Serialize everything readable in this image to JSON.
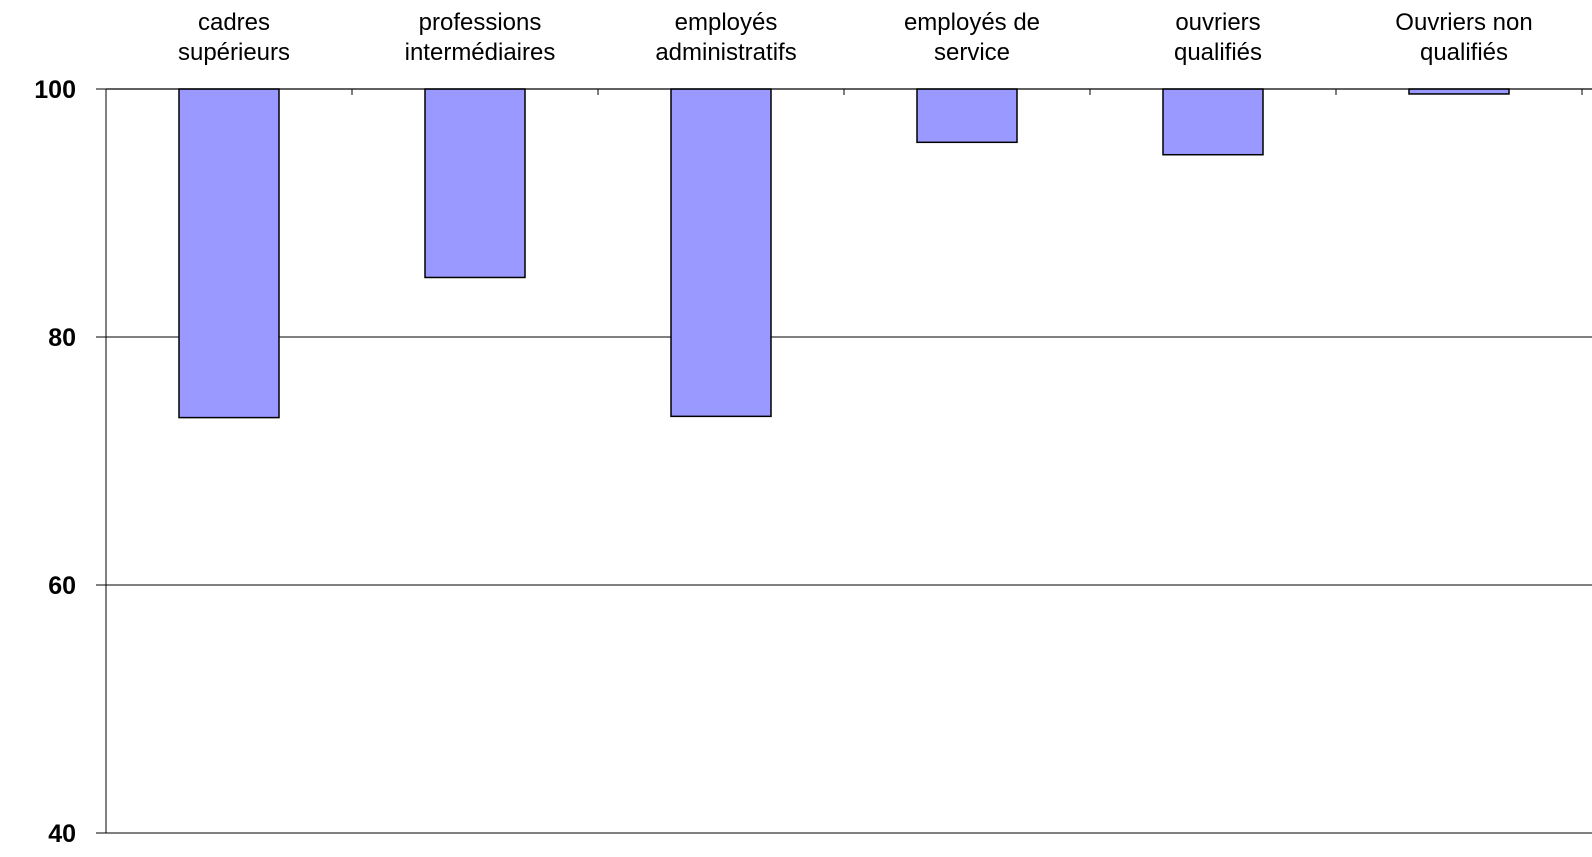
{
  "chart_data": {
    "type": "bar",
    "orientation": "vertical",
    "baseline": 100,
    "title": "",
    "xlabel": "",
    "ylabel": "",
    "ylim": [
      40,
      100
    ],
    "yticks": [
      40,
      60,
      80,
      100
    ],
    "x_axis_position": "top",
    "grid": true,
    "legend": "none",
    "categories": [
      "cadres\nsupérieurs",
      "professions\nintermédiaires",
      "employés\nadministratifs",
      "employés de\nservice",
      "ouvriers\nqualifiés",
      "Ouvriers non\nqualifiés"
    ],
    "values": [
      73.5,
      84.8,
      73.6,
      95.7,
      94.7,
      99.6
    ]
  },
  "colors": {
    "bar_fill": "#9999ff",
    "bar_stroke": "#000000",
    "axis": "#000000",
    "grid": "#000000"
  }
}
